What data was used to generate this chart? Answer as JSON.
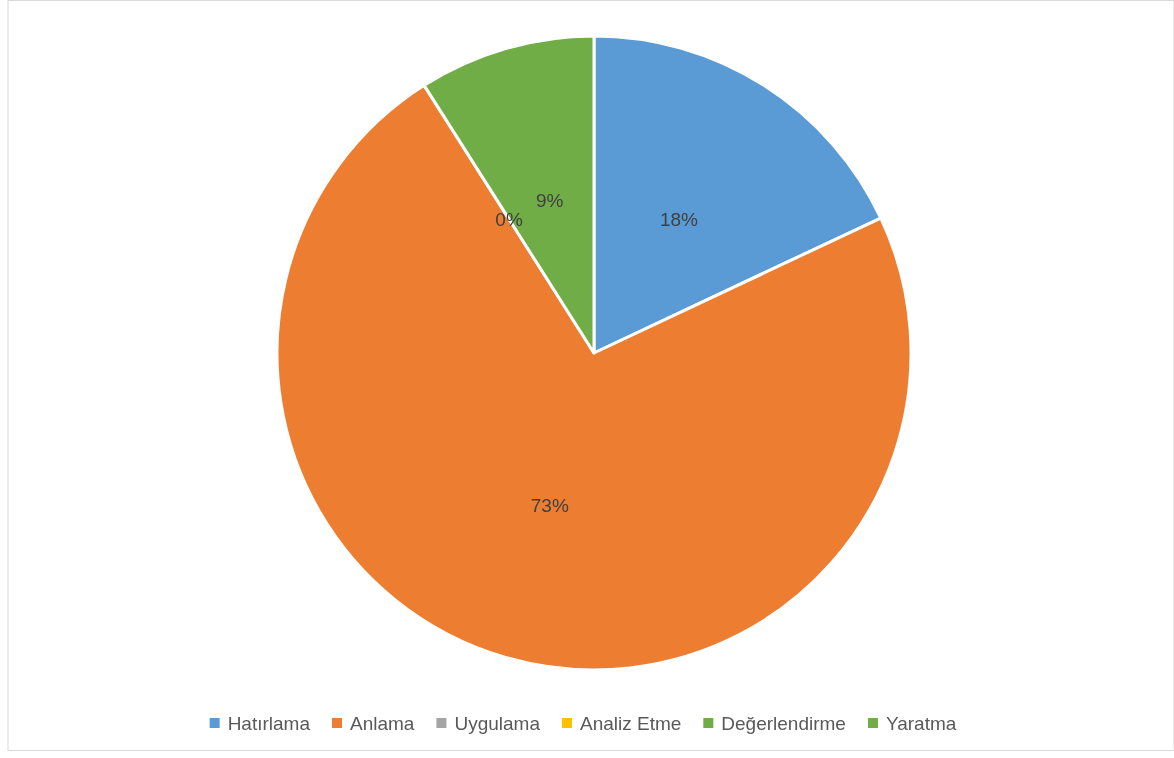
{
  "chart_data": {
    "type": "pie",
    "categories": [
      "Hatırlama",
      "Anlama",
      "Uygulama",
      "Analiz Etme",
      "Değerlendirme",
      "Yaratma"
    ],
    "values": [
      18,
      73,
      0,
      0,
      0,
      9
    ],
    "colors": [
      "#5b9bd5",
      "#ed7d31",
      "#a5a5a5",
      "#ffc000",
      "#70ad47",
      "#70ad47"
    ],
    "value_labels": [
      "18%",
      "73%",
      null,
      null,
      "0%",
      "9%"
    ],
    "legend": "bottom"
  }
}
